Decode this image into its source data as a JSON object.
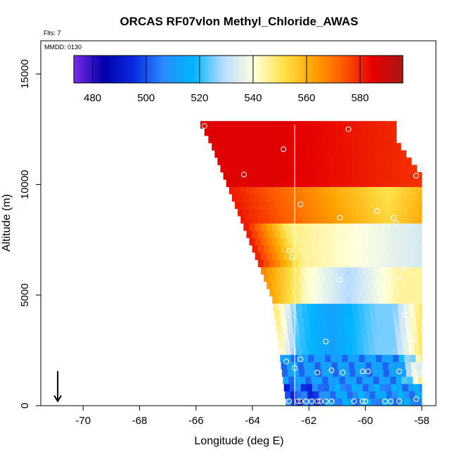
{
  "chart_data": {
    "type": "heatmap",
    "title": "ORCAS RF07vlon Methyl_Chloride_AWAS",
    "flts_label": "Flts: 7",
    "mmdd_label": "MMDD: 0130",
    "xlabel": "Longitude (deg E)",
    "ylabel": "Altitude (m)",
    "xlim": [
      -71.5,
      -57.5
    ],
    "ylim": [
      0,
      16500
    ],
    "x_ticks": [
      -70,
      -68,
      -66,
      -64,
      -62,
      -60,
      -58
    ],
    "x_tick_labels": [
      "-70",
      "-68",
      "-66",
      "-64",
      "-62",
      "-60",
      "-58"
    ],
    "y_ticks": [
      0,
      5000,
      10000,
      15000
    ],
    "y_tick_labels": [
      "0",
      "5000",
      "10000",
      "15000"
    ],
    "colorbar": {
      "range": [
        473,
        596
      ],
      "ticks": [
        480,
        500,
        520,
        540,
        560,
        580
      ],
      "tick_labels": [
        "480",
        "500",
        "520",
        "540",
        "560",
        "580"
      ],
      "colors": [
        "#7b2de8",
        "#0000a8",
        "#0a2adf",
        "#2a8cff",
        "#00b4ff",
        "#b8dcff",
        "#ffffe0",
        "#ffe34a",
        "#ffa400",
        "#ff5a00",
        "#e60000",
        "#a81818"
      ]
    },
    "arrow_marker": {
      "x": -70.9,
      "y": 300,
      "y_end": 1500
    },
    "vertical_line": {
      "x": -62.5
    },
    "grid_cell": {
      "dx": 0.2,
      "dy": 330
    },
    "sample_points": [
      {
        "x": -65.7,
        "y": 12650
      },
      {
        "x": -62.9,
        "y": 11600
      },
      {
        "x": -60.6,
        "y": 12500
      },
      {
        "x": -64.3,
        "y": 10450
      },
      {
        "x": -62.3,
        "y": 9100
      },
      {
        "x": -58.2,
        "y": 10400
      },
      {
        "x": -60.9,
        "y": 8500
      },
      {
        "x": -59.6,
        "y": 8800
      },
      {
        "x": -59.0,
        "y": 8500
      },
      {
        "x": -58.9,
        "y": 8250
      },
      {
        "x": -62.7,
        "y": 7000
      },
      {
        "x": -62.6,
        "y": 6700
      },
      {
        "x": -58.6,
        "y": 6200
      },
      {
        "x": -60.9,
        "y": 5700
      },
      {
        "x": -58.8,
        "y": 5800
      },
      {
        "x": -63.1,
        "y": 4500
      },
      {
        "x": -58.6,
        "y": 4100
      },
      {
        "x": -61.4,
        "y": 2900
      },
      {
        "x": -58.3,
        "y": 3000
      },
      {
        "x": -62.3,
        "y": 2100
      },
      {
        "x": -62.8,
        "y": 2000
      },
      {
        "x": -62.5,
        "y": 1700
      },
      {
        "x": -61.7,
        "y": 1500
      },
      {
        "x": -60.8,
        "y": 1500
      },
      {
        "x": -60.1,
        "y": 1550
      },
      {
        "x": -59.9,
        "y": 1550
      },
      {
        "x": -58.8,
        "y": 1550
      },
      {
        "x": -61.2,
        "y": 1600
      },
      {
        "x": -62.7,
        "y": 200
      },
      {
        "x": -62.4,
        "y": 200
      },
      {
        "x": -62.3,
        "y": 200
      },
      {
        "x": -62.1,
        "y": 200
      },
      {
        "x": -61.9,
        "y": 200
      },
      {
        "x": -61.7,
        "y": 200
      },
      {
        "x": -61.6,
        "y": 200
      },
      {
        "x": -61.4,
        "y": 200
      },
      {
        "x": -61.2,
        "y": 200
      },
      {
        "x": -60.4,
        "y": 200
      },
      {
        "x": -60.1,
        "y": 200
      },
      {
        "x": -60.0,
        "y": 200
      },
      {
        "x": -59.3,
        "y": 200
      },
      {
        "x": -59.1,
        "y": 200
      },
      {
        "x": -58.8,
        "y": 200
      },
      {
        "x": -58.2,
        "y": 300
      },
      {
        "x": -57.8,
        "y": 400
      }
    ],
    "field_model": {
      "description": "Interpolated curtain field, methyl chloride (pptv)",
      "top_value": 585,
      "mid_value": 540,
      "low_value": 515
    }
  }
}
